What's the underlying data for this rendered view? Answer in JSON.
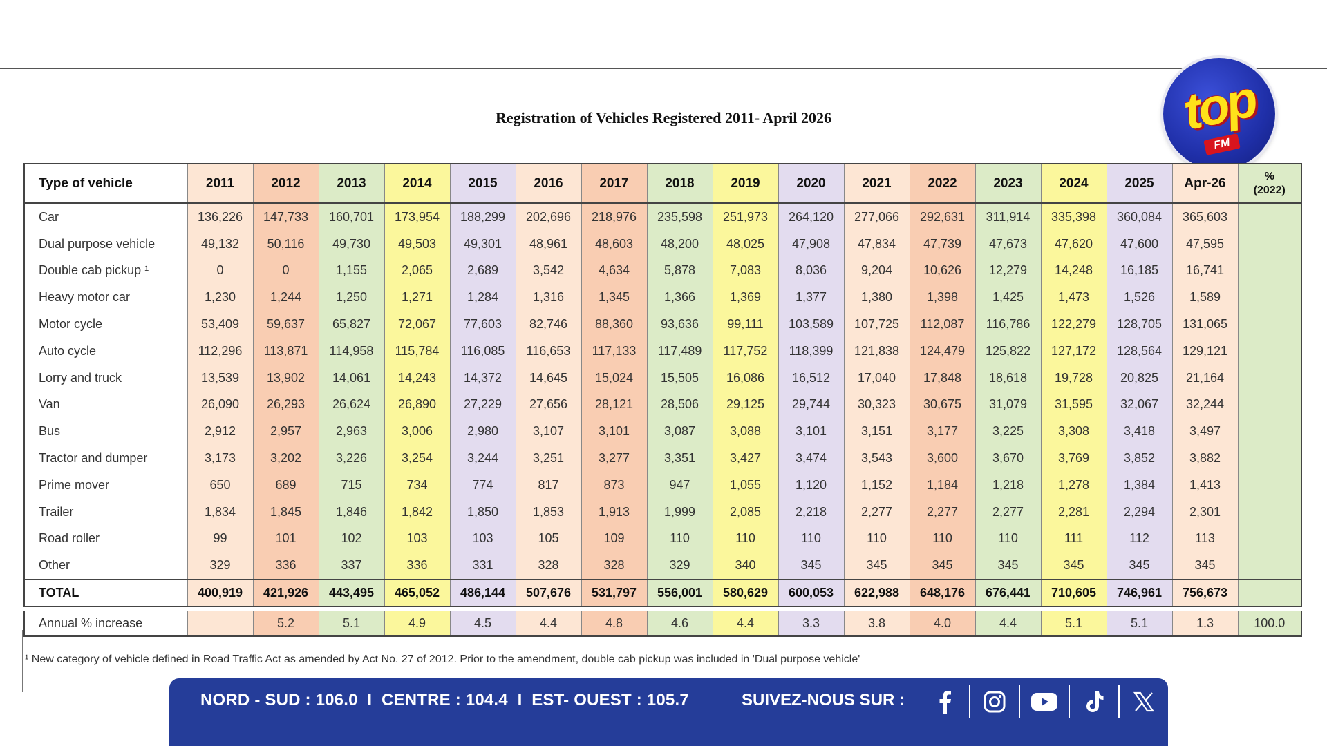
{
  "title": "Registration of Vehicles Registered 2011- April 2026",
  "logo": {
    "word": "top",
    "sub": "FM"
  },
  "table": {
    "headers": [
      "Type  of  vehicle",
      "2011",
      "2012",
      "2013",
      "2014",
      "2015",
      "2016",
      "2017",
      "2018",
      "2019",
      "2020",
      "2021",
      "2022",
      "2023",
      "2024",
      "2025",
      "Apr-26",
      "%\n(2022)"
    ],
    "column_colors": [
      "#ffffff",
      "#fde6d4",
      "#f9cdb2",
      "#dcebc7",
      "#fbf79c",
      "#e3dcef",
      "#fde6d4",
      "#f9cdb2",
      "#dcebc7",
      "#fbf79c",
      "#e3dcef",
      "#fde6d4",
      "#f9cdb2",
      "#dcebc7",
      "#fbf79c",
      "#e3dcef",
      "#fde6d4",
      "#dcebc7"
    ],
    "rows": [
      {
        "label": "Car",
        "values": [
          "136,226",
          "147,733",
          "160,701",
          "173,954",
          "188,299",
          "202,696",
          "218,976",
          "235,598",
          "251,973",
          "264,120",
          "277,066",
          "292,631",
          "311,914",
          "335,398",
          "360,084",
          "365,603",
          ""
        ]
      },
      {
        "label": "Dual purpose vehicle",
        "values": [
          "49,132",
          "50,116",
          "49,730",
          "49,503",
          "49,301",
          "48,961",
          "48,603",
          "48,200",
          "48,025",
          "47,908",
          "47,834",
          "47,739",
          "47,673",
          "47,620",
          "47,600",
          "47,595",
          ""
        ]
      },
      {
        "label": "Double cab pickup ¹",
        "values": [
          "0",
          "0",
          "1,155",
          "2,065",
          "2,689",
          "3,542",
          "4,634",
          "5,878",
          "7,083",
          "8,036",
          "9,204",
          "10,626",
          "12,279",
          "14,248",
          "16,185",
          "16,741",
          ""
        ]
      },
      {
        "label": "Heavy motor car",
        "values": [
          "1,230",
          "1,244",
          "1,250",
          "1,271",
          "1,284",
          "1,316",
          "1,345",
          "1,366",
          "1,369",
          "1,377",
          "1,380",
          "1,398",
          "1,425",
          "1,473",
          "1,526",
          "1,589",
          ""
        ]
      },
      {
        "label": "Motor cycle",
        "values": [
          "53,409",
          "59,637",
          "65,827",
          "72,067",
          "77,603",
          "82,746",
          "88,360",
          "93,636",
          "99,111",
          "103,589",
          "107,725",
          "112,087",
          "116,786",
          "122,279",
          "128,705",
          "131,065",
          ""
        ]
      },
      {
        "label": "Auto cycle",
        "values": [
          "112,296",
          "113,871",
          "114,958",
          "115,784",
          "116,085",
          "116,653",
          "117,133",
          "117,489",
          "117,752",
          "118,399",
          "121,838",
          "124,479",
          "125,822",
          "127,172",
          "128,564",
          "129,121",
          ""
        ]
      },
      {
        "label": "Lorry and truck",
        "values": [
          "13,539",
          "13,902",
          "14,061",
          "14,243",
          "14,372",
          "14,645",
          "15,024",
          "15,505",
          "16,086",
          "16,512",
          "17,040",
          "17,848",
          "18,618",
          "19,728",
          "20,825",
          "21,164",
          ""
        ]
      },
      {
        "label": "Van",
        "values": [
          "26,090",
          "26,293",
          "26,624",
          "26,890",
          "27,229",
          "27,656",
          "28,121",
          "28,506",
          "29,125",
          "29,744",
          "30,323",
          "30,675",
          "31,079",
          "31,595",
          "32,067",
          "32,244",
          ""
        ]
      },
      {
        "label": "Bus",
        "values": [
          "2,912",
          "2,957",
          "2,963",
          "3,006",
          "2,980",
          "3,107",
          "3,101",
          "3,087",
          "3,088",
          "3,101",
          "3,151",
          "3,177",
          "3,225",
          "3,308",
          "3,418",
          "3,497",
          ""
        ]
      },
      {
        "label": "Tractor and dumper",
        "values": [
          "3,173",
          "3,202",
          "3,226",
          "3,254",
          "3,244",
          "3,251",
          "3,277",
          "3,351",
          "3,427",
          "3,474",
          "3,543",
          "3,600",
          "3,670",
          "3,769",
          "3,852",
          "3,882",
          ""
        ]
      },
      {
        "label": "Prime mover",
        "values": [
          "650",
          "689",
          "715",
          "734",
          "774",
          "817",
          "873",
          "947",
          "1,055",
          "1,120",
          "1,152",
          "1,184",
          "1,218",
          "1,278",
          "1,384",
          "1,413",
          ""
        ]
      },
      {
        "label": "Trailer",
        "values": [
          "1,834",
          "1,845",
          "1,846",
          "1,842",
          "1,850",
          "1,853",
          "1,913",
          "1,999",
          "2,085",
          "2,218",
          "2,277",
          "2,277",
          "2,277",
          "2,281",
          "2,294",
          "2,301",
          ""
        ]
      },
      {
        "label": "Road roller",
        "values": [
          "99",
          "101",
          "102",
          "103",
          "103",
          "105",
          "109",
          "110",
          "110",
          "110",
          "110",
          "110",
          "110",
          "111",
          "112",
          "113",
          ""
        ]
      },
      {
        "label": "Other",
        "values": [
          "329",
          "336",
          "337",
          "336",
          "331",
          "328",
          "328",
          "329",
          "340",
          "345",
          "345",
          "345",
          "345",
          "345",
          "345",
          "345",
          ""
        ]
      }
    ],
    "total": {
      "label": "TOTAL",
      "values": [
        "400,919",
        "421,926",
        "443,495",
        "465,052",
        "486,144",
        "507,676",
        "531,797",
        "556,001",
        "580,629",
        "600,053",
        "622,988",
        "648,176",
        "676,441",
        "710,605",
        "746,961",
        "756,673",
        ""
      ]
    },
    "annual": {
      "label": "Annual % increase",
      "values": [
        "",
        "5.2",
        "5.1",
        "4.9",
        "4.5",
        "4.4",
        "4.8",
        "4.6",
        "4.4",
        "3.3",
        "3.8",
        "4.0",
        "4.4",
        "5.1",
        "5.1",
        "1.3",
        "100.0"
      ]
    }
  },
  "footnote": "¹ New category of vehicle defined in Road Traffic Act as amended by Act No. 27 of 2012. Prior to the amendment, double cab pickup was included in 'Dual purpose vehicle'",
  "banner": {
    "frequencies": "NORD - SUD : 106.0  I  CENTRE : 104.4  I  EST- OUEST : 105.7",
    "follow_label": "SUIVEZ-NOUS SUR :",
    "socials": [
      "facebook-icon",
      "instagram-icon",
      "youtube-icon",
      "tiktok-icon",
      "x-icon"
    ],
    "color": "#253d99"
  }
}
